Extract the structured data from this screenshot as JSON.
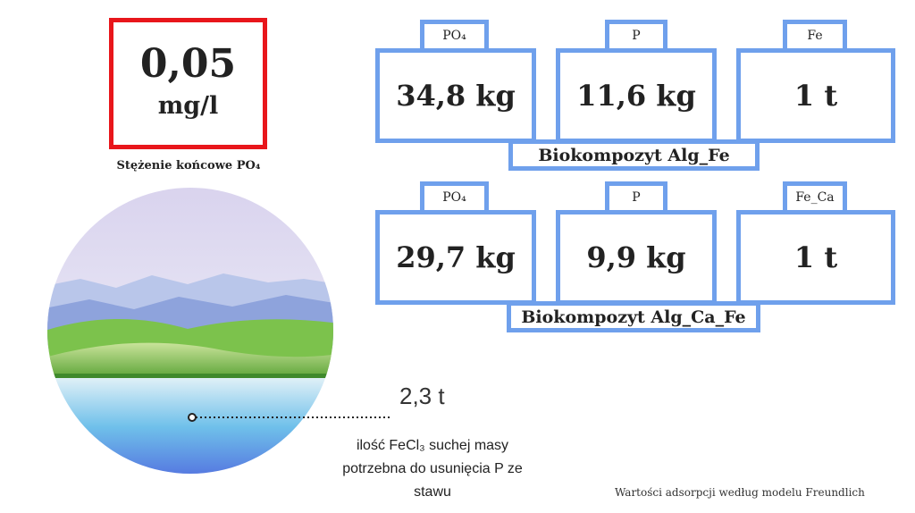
{
  "concentration": {
    "value": "0,05",
    "unit": "mg/l",
    "caption": "Stężenie końcowe PO₄"
  },
  "groups": [
    {
      "title": "Biokompozyt Alg_Fe",
      "items": [
        {
          "label": "PO₄",
          "value": "34,8 kg"
        },
        {
          "label": "P",
          "value": "11,6 kg"
        },
        {
          "label": "Fe",
          "value": "1 t"
        }
      ]
    },
    {
      "title": "Biokompozyt Alg_Ca_Fe",
      "items": [
        {
          "label": "PO₄",
          "value": "29,7 kg"
        },
        {
          "label": "P",
          "value": "9,9 kg"
        },
        {
          "label": "Fe_Ca",
          "value": "1 t"
        }
      ]
    }
  ],
  "pond": {
    "amount": "2,3 t",
    "description": "ilość FeCl₃ suchej masy potrzebna do usunięcia P ze stawu"
  },
  "footer": "Wartości adsorpcji według modelu Freundlich"
}
